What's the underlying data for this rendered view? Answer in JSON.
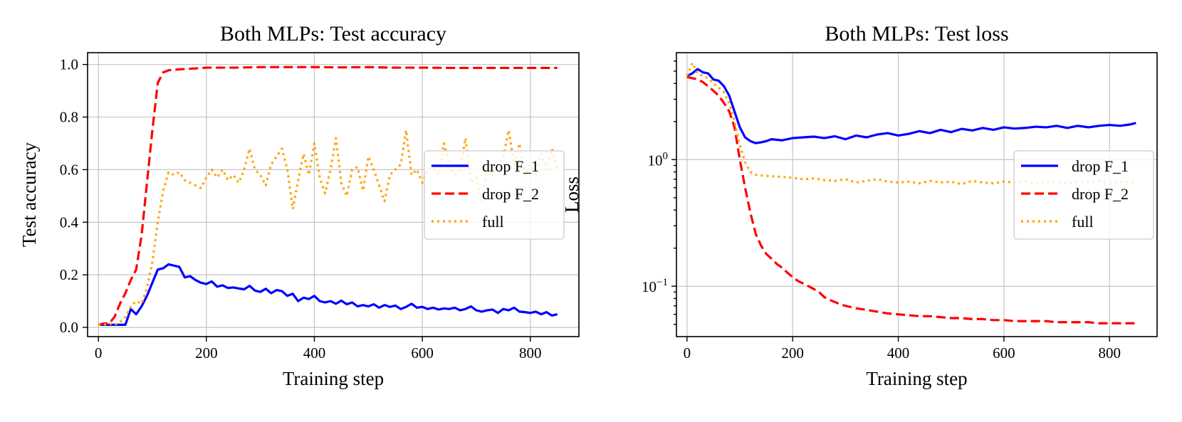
{
  "chart_data": [
    {
      "type": "line",
      "title": "Both MLPs: Test accuracy",
      "xlabel": "Training step",
      "ylabel": "Test accuracy",
      "xlim": [
        -20,
        890
      ],
      "ylim": [
        -0.035,
        1.045
      ],
      "yscale": "linear",
      "grid": true,
      "legend_position": "center-right",
      "xticks": [
        0,
        200,
        400,
        600,
        800
      ],
      "xtick_labels": [
        "0",
        "200",
        "400",
        "600",
        "800"
      ],
      "yticks": [
        0.0,
        0.2,
        0.4,
        0.6,
        0.8,
        1.0
      ],
      "ytick_labels": [
        "0.0",
        "0.2",
        "0.4",
        "0.6",
        "0.8",
        "1.0"
      ],
      "series": [
        {
          "name": "drop F_1",
          "color": "#0000ff",
          "style": "solid",
          "x": [
            0,
            10,
            20,
            30,
            40,
            50,
            55,
            60,
            70,
            80,
            90,
            100,
            110,
            120,
            130,
            140,
            150,
            160,
            170,
            180,
            190,
            200,
            210,
            220,
            230,
            240,
            250,
            260,
            270,
            280,
            290,
            300,
            310,
            320,
            330,
            340,
            350,
            360,
            370,
            380,
            390,
            400,
            410,
            420,
            430,
            440,
            450,
            460,
            470,
            480,
            490,
            500,
            510,
            520,
            530,
            540,
            550,
            560,
            570,
            580,
            590,
            600,
            610,
            620,
            630,
            640,
            650,
            660,
            670,
            680,
            690,
            700,
            710,
            720,
            730,
            740,
            750,
            760,
            770,
            780,
            790,
            800,
            810,
            820,
            830,
            840,
            850
          ],
          "y": [
            0.01,
            0.01,
            0.01,
            0.01,
            0.01,
            0.01,
            0.04,
            0.07,
            0.05,
            0.08,
            0.12,
            0.17,
            0.22,
            0.225,
            0.24,
            0.235,
            0.23,
            0.19,
            0.195,
            0.18,
            0.17,
            0.165,
            0.175,
            0.155,
            0.16,
            0.15,
            0.152,
            0.148,
            0.145,
            0.158,
            0.14,
            0.135,
            0.147,
            0.13,
            0.142,
            0.138,
            0.12,
            0.128,
            0.1,
            0.113,
            0.108,
            0.12,
            0.1,
            0.095,
            0.1,
            0.09,
            0.102,
            0.088,
            0.095,
            0.08,
            0.085,
            0.08,
            0.088,
            0.075,
            0.085,
            0.078,
            0.083,
            0.07,
            0.078,
            0.09,
            0.075,
            0.078,
            0.07,
            0.075,
            0.068,
            0.072,
            0.07,
            0.075,
            0.065,
            0.07,
            0.08,
            0.065,
            0.06,
            0.065,
            0.068,
            0.055,
            0.07,
            0.065,
            0.075,
            0.06,
            0.058,
            0.055,
            0.06,
            0.05,
            0.058,
            0.045,
            0.05
          ]
        },
        {
          "name": "drop F_2",
          "color": "#ff0000",
          "style": "dashed",
          "x": [
            0,
            10,
            20,
            30,
            40,
            50,
            60,
            70,
            80,
            90,
            100,
            110,
            120,
            130,
            140,
            160,
            180,
            200,
            250,
            300,
            350,
            400,
            450,
            500,
            550,
            600,
            650,
            700,
            750,
            800,
            850
          ],
          "y": [
            0.01,
            0.015,
            0.015,
            0.04,
            0.09,
            0.13,
            0.18,
            0.22,
            0.35,
            0.55,
            0.75,
            0.93,
            0.97,
            0.978,
            0.98,
            0.983,
            0.985,
            0.988,
            0.988,
            0.99,
            0.99,
            0.99,
            0.989,
            0.99,
            0.988,
            0.988,
            0.987,
            0.987,
            0.987,
            0.987,
            0.987
          ]
        },
        {
          "name": "full",
          "color": "#ffa500",
          "style": "dotted",
          "x": [
            0,
            10,
            20,
            30,
            40,
            50,
            60,
            70,
            80,
            90,
            100,
            110,
            120,
            130,
            140,
            150,
            160,
            170,
            180,
            190,
            200,
            210,
            220,
            230,
            240,
            250,
            260,
            270,
            280,
            290,
            300,
            310,
            320,
            330,
            340,
            350,
            360,
            370,
            380,
            390,
            400,
            410,
            420,
            430,
            440,
            450,
            460,
            470,
            480,
            490,
            500,
            510,
            520,
            530,
            540,
            550,
            560,
            570,
            580,
            590,
            600,
            610,
            620,
            630,
            640,
            650,
            660,
            670,
            680,
            690,
            700,
            710,
            720,
            730,
            740,
            750,
            760,
            770,
            780,
            790,
            800,
            810,
            820,
            830,
            840,
            850
          ],
          "y": [
            0.01,
            0.01,
            0.015,
            0.01,
            0.02,
            0.04,
            0.08,
            0.1,
            0.09,
            0.15,
            0.25,
            0.4,
            0.52,
            0.59,
            0.58,
            0.59,
            0.56,
            0.55,
            0.54,
            0.53,
            0.57,
            0.6,
            0.57,
            0.6,
            0.56,
            0.58,
            0.55,
            0.6,
            0.68,
            0.6,
            0.58,
            0.54,
            0.62,
            0.65,
            0.68,
            0.6,
            0.45,
            0.56,
            0.66,
            0.58,
            0.7,
            0.57,
            0.51,
            0.6,
            0.72,
            0.55,
            0.5,
            0.6,
            0.61,
            0.52,
            0.65,
            0.6,
            0.54,
            0.48,
            0.58,
            0.6,
            0.62,
            0.75,
            0.58,
            0.6,
            0.55,
            0.6,
            0.61,
            0.58,
            0.7,
            0.62,
            0.58,
            0.6,
            0.72,
            0.55,
            0.57,
            0.48,
            0.6,
            0.58,
            0.62,
            0.65,
            0.75,
            0.62,
            0.7,
            0.58,
            0.62,
            0.57,
            0.66,
            0.6,
            0.68,
            0.6
          ]
        }
      ]
    },
    {
      "type": "line",
      "title": "Both MLPs: Test loss",
      "xlabel": "Training step",
      "ylabel": "Loss",
      "xlim": [
        -20,
        890
      ],
      "ylim": [
        0.04,
        7.0
      ],
      "yscale": "log",
      "grid": true,
      "legend_position": "center-right",
      "xticks": [
        0,
        200,
        400,
        600,
        800
      ],
      "xtick_labels": [
        "0",
        "200",
        "400",
        "600",
        "800"
      ],
      "yticks_major": [
        {
          "value": 0.1,
          "base": "10",
          "exp": "−1"
        },
        {
          "value": 1,
          "base": "10",
          "exp": "0"
        }
      ],
      "series": [
        {
          "name": "drop F_1",
          "color": "#0000ff",
          "style": "solid",
          "x": [
            0,
            10,
            20,
            30,
            40,
            50,
            60,
            70,
            80,
            90,
            100,
            110,
            120,
            130,
            140,
            150,
            160,
            180,
            200,
            220,
            240,
            260,
            280,
            300,
            320,
            340,
            360,
            380,
            400,
            420,
            440,
            460,
            480,
            500,
            520,
            540,
            560,
            580,
            600,
            620,
            640,
            660,
            680,
            700,
            720,
            740,
            760,
            780,
            800,
            820,
            840,
            850
          ],
          "y": [
            4.6,
            4.8,
            5.2,
            4.9,
            4.8,
            4.3,
            4.2,
            3.8,
            3.2,
            2.4,
            1.8,
            1.5,
            1.4,
            1.35,
            1.37,
            1.4,
            1.45,
            1.42,
            1.48,
            1.5,
            1.52,
            1.48,
            1.53,
            1.45,
            1.55,
            1.5,
            1.58,
            1.62,
            1.55,
            1.6,
            1.68,
            1.62,
            1.72,
            1.65,
            1.75,
            1.7,
            1.78,
            1.72,
            1.8,
            1.76,
            1.78,
            1.82,
            1.8,
            1.85,
            1.78,
            1.85,
            1.8,
            1.85,
            1.88,
            1.85,
            1.9,
            1.95
          ]
        },
        {
          "name": "drop F_2",
          "color": "#ff0000",
          "style": "dashed",
          "x": [
            0,
            10,
            20,
            30,
            40,
            50,
            60,
            70,
            80,
            90,
            100,
            110,
            120,
            130,
            140,
            150,
            160,
            170,
            180,
            190,
            200,
            210,
            220,
            230,
            240,
            250,
            260,
            270,
            280,
            290,
            300,
            320,
            340,
            360,
            380,
            400,
            420,
            440,
            460,
            480,
            500,
            520,
            540,
            560,
            580,
            600,
            620,
            640,
            660,
            680,
            700,
            720,
            740,
            760,
            780,
            800,
            820,
            840,
            850
          ],
          "y": [
            4.5,
            4.4,
            4.3,
            4.1,
            3.8,
            3.5,
            3.2,
            2.8,
            2.4,
            1.8,
            1.0,
            0.6,
            0.38,
            0.26,
            0.21,
            0.18,
            0.165,
            0.15,
            0.14,
            0.128,
            0.118,
            0.11,
            0.105,
            0.1,
            0.095,
            0.09,
            0.082,
            0.078,
            0.075,
            0.072,
            0.07,
            0.067,
            0.065,
            0.063,
            0.061,
            0.06,
            0.059,
            0.058,
            0.058,
            0.057,
            0.056,
            0.056,
            0.055,
            0.055,
            0.054,
            0.054,
            0.053,
            0.053,
            0.053,
            0.053,
            0.052,
            0.052,
            0.052,
            0.052,
            0.051,
            0.051,
            0.051,
            0.051,
            0.051
          ]
        },
        {
          "name": "full",
          "color": "#ffa500",
          "style": "dotted",
          "x": [
            0,
            10,
            20,
            30,
            40,
            50,
            60,
            70,
            80,
            90,
            100,
            110,
            120,
            130,
            140,
            160,
            180,
            200,
            220,
            240,
            260,
            280,
            300,
            320,
            340,
            360,
            380,
            400,
            420,
            440,
            460,
            480,
            500,
            520,
            540,
            560,
            580,
            600,
            620,
            640,
            660,
            680,
            700,
            720,
            740,
            760,
            780,
            800,
            820,
            840,
            850
          ],
          "y": [
            4.6,
            5.8,
            4.8,
            4.6,
            4.4,
            4.0,
            3.7,
            3.4,
            2.8,
            2.0,
            1.3,
            0.95,
            0.8,
            0.76,
            0.75,
            0.74,
            0.73,
            0.72,
            0.7,
            0.71,
            0.69,
            0.68,
            0.7,
            0.66,
            0.68,
            0.7,
            0.67,
            0.66,
            0.67,
            0.65,
            0.68,
            0.66,
            0.67,
            0.64,
            0.68,
            0.66,
            0.65,
            0.67,
            0.66,
            0.68,
            0.64,
            0.67,
            0.66,
            0.65,
            0.67,
            0.66,
            0.68,
            0.65,
            0.67,
            0.66,
            0.66
          ]
        }
      ]
    }
  ]
}
